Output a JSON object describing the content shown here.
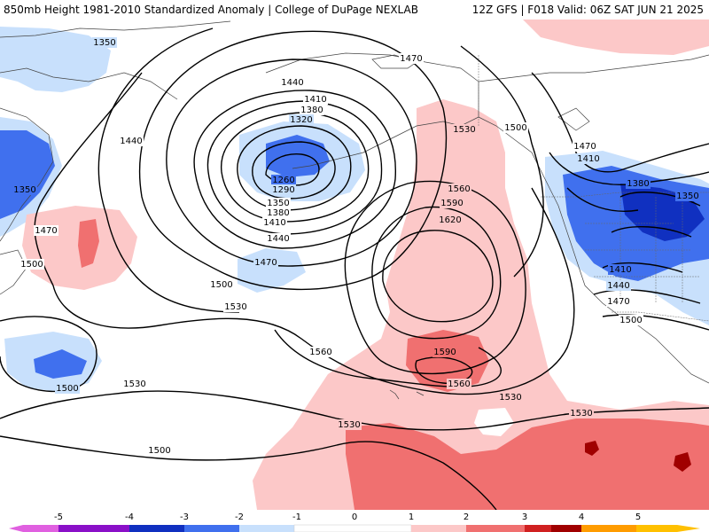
{
  "header": {
    "left": "850mb Height 1981-2010 Standardized Anomaly | College of DuPage NEXLAB",
    "right": "12Z GFS | F018 Valid: 06Z SAT JUN 21 2025"
  },
  "colors": {
    "neg5": "#e060e0",
    "neg4": "#8a10c8",
    "neg3": "#1030c0",
    "neg2": "#4070ee",
    "neg1": "#c8e0fc",
    "zero": "#ffffff",
    "pos1": "#fcc8c8",
    "pos2": "#f07070",
    "pos3": "#d02020",
    "pos4": "#a00000",
    "pos5": "#ff9c00"
  },
  "contour_labels": [
    {
      "id": "c1350-nw",
      "text": "1350"
    },
    {
      "id": "c1440-n",
      "text": "1440"
    },
    {
      "id": "c1470-n",
      "text": "1470"
    },
    {
      "id": "c1410-a",
      "text": "1410"
    },
    {
      "id": "c1380-a",
      "text": "1380"
    },
    {
      "id": "c1320",
      "text": "1320"
    },
    {
      "id": "c1440-w",
      "text": "1440"
    },
    {
      "id": "c1350-w",
      "text": "1350"
    },
    {
      "id": "c1260",
      "text": "1260"
    },
    {
      "id": "c1290",
      "text": "1290"
    },
    {
      "id": "c1350-b",
      "text": "1350"
    },
    {
      "id": "c1380-b",
      "text": "1380"
    },
    {
      "id": "c1410-b",
      "text": "1410"
    },
    {
      "id": "c1440-b",
      "text": "1440"
    },
    {
      "id": "c1470-w",
      "text": "1470"
    },
    {
      "id": "c1500-w",
      "text": "1500"
    },
    {
      "id": "c1470-c",
      "text": "1470"
    },
    {
      "id": "c1500-c",
      "text": "1500"
    },
    {
      "id": "c1530-c",
      "text": "1530"
    },
    {
      "id": "c1530-n",
      "text": "1530"
    },
    {
      "id": "c1560-n",
      "text": "1560"
    },
    {
      "id": "c1590-n",
      "text": "1590"
    },
    {
      "id": "c1620",
      "text": "1620"
    },
    {
      "id": "c1500-ne",
      "text": "1500"
    },
    {
      "id": "c1470-ne",
      "text": "1470"
    },
    {
      "id": "c1410-e",
      "text": "1410"
    },
    {
      "id": "c1380-e",
      "text": "1380"
    },
    {
      "id": "c1350-e",
      "text": "1350"
    },
    {
      "id": "c1410-se",
      "text": "1410"
    },
    {
      "id": "c1440-se",
      "text": "1440"
    },
    {
      "id": "c1470-se",
      "text": "1470"
    },
    {
      "id": "c1500-se",
      "text": "1500"
    },
    {
      "id": "c1560-c",
      "text": "1560"
    },
    {
      "id": "c1590-s",
      "text": "1590"
    },
    {
      "id": "c1560-s",
      "text": "1560"
    },
    {
      "id": "c1500-sw",
      "text": "1500"
    },
    {
      "id": "c1530-sw",
      "text": "1530"
    },
    {
      "id": "c1530-s",
      "text": "1530"
    },
    {
      "id": "c1500-s",
      "text": "1500"
    },
    {
      "id": "c1530-se",
      "text": "1530"
    },
    {
      "id": "c1530-e",
      "text": "1530"
    }
  ],
  "colorbar": {
    "ticks": [
      "-5",
      "-4",
      "-3",
      "-2",
      "-1",
      "0",
      "1",
      "2",
      "3",
      "4",
      "5"
    ]
  }
}
